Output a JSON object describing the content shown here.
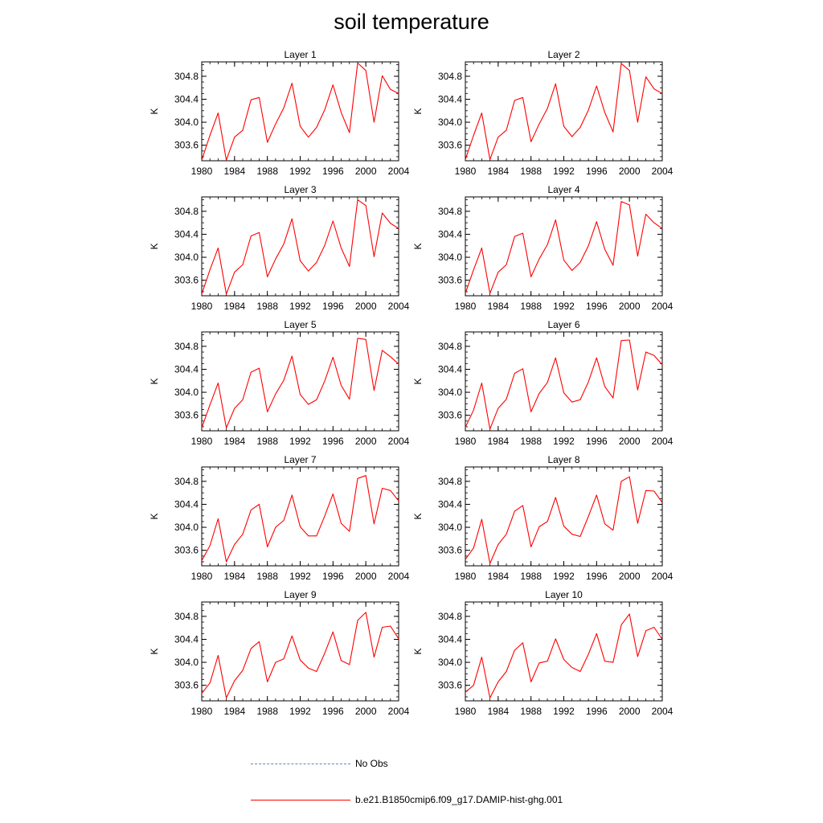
{
  "title": "soil temperature",
  "chart_data": {
    "type": "line",
    "title": "soil temperature",
    "ylabel": "K",
    "x": [
      1980,
      1981,
      1982,
      1983,
      1984,
      1985,
      1986,
      1987,
      1988,
      1989,
      1990,
      1991,
      1992,
      1993,
      1994,
      1995,
      1996,
      1997,
      1998,
      1999,
      2000,
      2001,
      2002,
      2003,
      2004
    ],
    "xticks": [
      "1980",
      "1984",
      "1988",
      "1992",
      "1996",
      "2000",
      "2004"
    ],
    "yticks": [
      "303.6",
      "304.0",
      "304.4",
      "304.8"
    ],
    "xlim": [
      1980,
      2004
    ],
    "ylim": [
      303.33,
      305.05
    ],
    "series_color": "#ff0000",
    "obs_color": "#6a7fc1",
    "panels": [
      {
        "name": "Layer 1",
        "values": [
          303.34,
          303.77,
          304.16,
          303.34,
          303.74,
          303.86,
          304.39,
          304.43,
          303.65,
          303.97,
          304.25,
          304.68,
          303.93,
          303.74,
          303.91,
          304.22,
          304.65,
          304.17,
          303.82,
          305.03,
          304.9,
          304.0,
          304.81,
          304.57,
          304.5
        ]
      },
      {
        "name": "Layer 2",
        "values": [
          303.35,
          303.77,
          304.16,
          303.35,
          303.74,
          303.86,
          304.38,
          304.43,
          303.66,
          303.97,
          304.24,
          304.67,
          303.93,
          303.75,
          303.91,
          304.21,
          304.63,
          304.17,
          303.83,
          305.02,
          304.9,
          304.0,
          304.79,
          304.58,
          304.5
        ]
      },
      {
        "name": "Layer 3",
        "values": [
          303.36,
          303.78,
          304.16,
          303.36,
          303.74,
          303.87,
          304.37,
          304.43,
          303.66,
          303.97,
          304.23,
          304.67,
          303.94,
          303.76,
          303.91,
          304.21,
          304.63,
          304.16,
          303.84,
          305.0,
          304.9,
          304.01,
          304.77,
          304.59,
          304.5
        ]
      },
      {
        "name": "Layer 4",
        "values": [
          303.37,
          303.78,
          304.16,
          303.37,
          303.74,
          303.87,
          304.36,
          304.42,
          303.66,
          303.97,
          304.22,
          304.65,
          303.95,
          303.77,
          303.91,
          304.2,
          304.62,
          304.14,
          303.86,
          304.97,
          304.91,
          304.02,
          304.75,
          304.6,
          304.5
        ]
      },
      {
        "name": "Layer 5",
        "values": [
          303.38,
          303.78,
          304.16,
          303.38,
          303.72,
          303.87,
          304.35,
          304.42,
          303.66,
          303.97,
          304.21,
          304.63,
          303.96,
          303.79,
          303.87,
          304.2,
          304.61,
          304.12,
          303.88,
          304.94,
          304.92,
          304.03,
          304.73,
          304.62,
          304.49
        ]
      },
      {
        "name": "Layer 6",
        "values": [
          303.39,
          303.69,
          304.16,
          303.36,
          303.72,
          303.88,
          304.33,
          304.41,
          303.66,
          303.98,
          304.17,
          304.6,
          303.99,
          303.83,
          303.87,
          304.18,
          304.6,
          304.1,
          303.9,
          304.9,
          304.91,
          304.04,
          304.7,
          304.64,
          304.48
        ]
      },
      {
        "name": "Layer 7",
        "values": [
          303.42,
          303.68,
          304.15,
          303.4,
          303.7,
          303.88,
          304.3,
          304.4,
          303.66,
          304.0,
          304.12,
          304.56,
          304.01,
          303.85,
          303.85,
          304.2,
          304.58,
          304.07,
          303.93,
          304.85,
          304.9,
          304.06,
          304.68,
          304.64,
          304.46
        ]
      },
      {
        "name": "Layer 8",
        "values": [
          303.44,
          303.64,
          304.14,
          303.37,
          303.7,
          303.88,
          304.28,
          304.38,
          303.66,
          304.01,
          304.1,
          304.52,
          304.02,
          303.88,
          303.84,
          304.19,
          304.56,
          304.06,
          303.95,
          304.8,
          304.88,
          304.07,
          304.64,
          304.63,
          304.43
        ]
      },
      {
        "name": "Layer 9",
        "values": [
          303.46,
          303.64,
          304.12,
          303.38,
          303.68,
          303.86,
          304.24,
          304.36,
          303.66,
          304.0,
          304.06,
          304.46,
          304.04,
          303.9,
          303.84,
          304.16,
          304.53,
          304.03,
          303.96,
          304.73,
          304.87,
          304.09,
          304.61,
          304.63,
          304.41
        ]
      },
      {
        "name": "Layer 10",
        "values": [
          303.48,
          303.6,
          304.09,
          303.38,
          303.66,
          303.84,
          304.21,
          304.34,
          303.66,
          303.99,
          304.02,
          304.41,
          304.05,
          303.91,
          303.84,
          304.14,
          304.5,
          304.02,
          304.0,
          304.65,
          304.84,
          304.1,
          304.55,
          304.61,
          304.4
        ]
      }
    ],
    "legend": [
      {
        "label": "No Obs",
        "style": "dashed",
        "color": "#6a7fc1"
      },
      {
        "label": "b.e21.B1850cmip6.f09_g17.DAMIP-hist-ghg.001",
        "style": "solid",
        "color": "#ff0000"
      }
    ]
  }
}
